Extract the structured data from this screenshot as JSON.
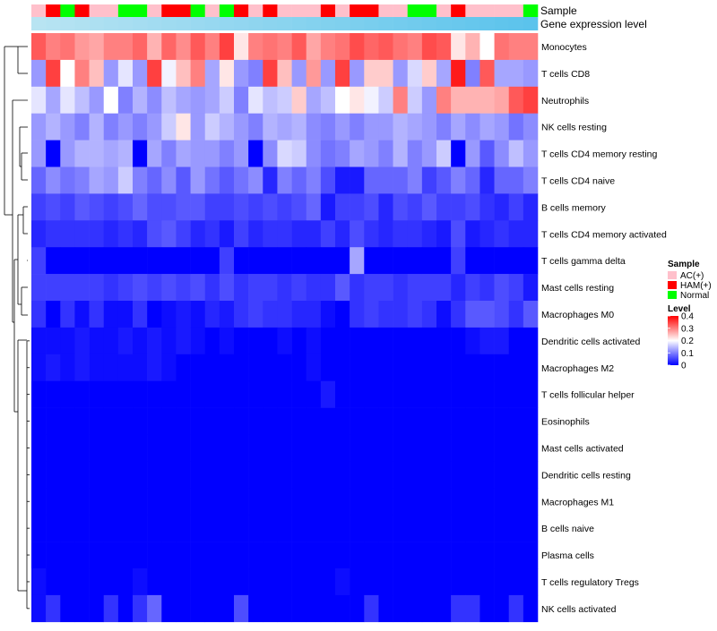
{
  "chart_data": {
    "type": "heatmap",
    "annotation_labels": [
      "Sample",
      "Gene expression level"
    ],
    "sample_groups": [
      "AC(+)",
      "HAM(+)",
      "Normal",
      "HAM(+)",
      "AC(+)",
      "AC(+)",
      "Normal",
      "Normal",
      "AC(+)",
      "HAM(+)",
      "HAM(+)",
      "Normal",
      "AC(+)",
      "Normal",
      "HAM(+)",
      "AC(+)",
      "HAM(+)",
      "AC(+)",
      "AC(+)",
      "AC(+)",
      "HAM(+)",
      "AC(+)",
      "HAM(+)",
      "HAM(+)",
      "AC(+)",
      "AC(+)",
      "Normal",
      "Normal",
      "AC(+)",
      "HAM(+)",
      "AC(+)",
      "AC(+)",
      "AC(+)",
      "AC(+)",
      "Normal"
    ],
    "rows": [
      {
        "name": "Monocytes",
        "values": [
          0.33,
          0.3,
          0.31,
          0.28,
          0.27,
          0.3,
          0.3,
          0.32,
          0.26,
          0.32,
          0.29,
          0.33,
          0.3,
          0.35,
          0.22,
          0.3,
          0.31,
          0.3,
          0.33,
          0.27,
          0.3,
          0.31,
          0.34,
          0.32,
          0.33,
          0.31,
          0.3,
          0.34,
          0.33,
          0.22,
          0.26,
          0.2,
          0.31,
          0.3,
          0.3
        ]
      },
      {
        "name": "T cells CD8",
        "values": [
          0.12,
          0.35,
          0.2,
          0.3,
          0.25,
          0.12,
          0.18,
          0.12,
          0.35,
          0.19,
          0.25,
          0.3,
          0.13,
          0.22,
          0.12,
          0.1,
          0.35,
          0.25,
          0.12,
          0.28,
          0.12,
          0.35,
          0.12,
          0.24,
          0.24,
          0.12,
          0.17,
          0.24,
          0.13,
          0.38,
          0.1,
          0.33,
          0.13,
          0.13,
          0.12
        ]
      },
      {
        "name": "Neutrophils",
        "values": [
          0.18,
          0.13,
          0.18,
          0.15,
          0.12,
          0.2,
          0.1,
          0.14,
          0.11,
          0.15,
          0.13,
          0.12,
          0.13,
          0.16,
          0.1,
          0.18,
          0.15,
          0.16,
          0.24,
          0.13,
          0.15,
          0.2,
          0.22,
          0.19,
          0.16,
          0.3,
          0.16,
          0.12,
          0.3,
          0.26,
          0.26,
          0.26,
          0.27,
          0.33,
          0.35
        ]
      },
      {
        "name": "NK cells resting",
        "values": [
          0.12,
          0.14,
          0.12,
          0.1,
          0.14,
          0.1,
          0.12,
          0.1,
          0.12,
          0.16,
          0.22,
          0.12,
          0.16,
          0.14,
          0.12,
          0.1,
          0.14,
          0.13,
          0.14,
          0.11,
          0.1,
          0.12,
          0.1,
          0.12,
          0.12,
          0.14,
          0.13,
          0.12,
          0.1,
          0.13,
          0.11,
          0.13,
          0.12,
          0.09,
          0.11
        ]
      },
      {
        "name": "T cells CD4 memory resting",
        "values": [
          0.12,
          0.0,
          0.12,
          0.14,
          0.14,
          0.13,
          0.14,
          0.0,
          0.13,
          0.1,
          0.13,
          0.12,
          0.12,
          0.1,
          0.12,
          0.0,
          0.11,
          0.17,
          0.16,
          0.11,
          0.09,
          0.1,
          0.13,
          0.12,
          0.1,
          0.14,
          0.1,
          0.12,
          0.16,
          0.0,
          0.12,
          0.07,
          0.11,
          0.15,
          0.12
        ]
      },
      {
        "name": "T cells CD4 naive",
        "values": [
          0.08,
          0.11,
          0.09,
          0.1,
          0.13,
          0.12,
          0.16,
          0.1,
          0.08,
          0.11,
          0.07,
          0.12,
          0.09,
          0.07,
          0.09,
          0.11,
          0.03,
          0.1,
          0.08,
          0.1,
          0.06,
          0.02,
          0.02,
          0.08,
          0.08,
          0.08,
          0.1,
          0.05,
          0.07,
          0.1,
          0.08,
          0.03,
          0.08,
          0.08,
          0.1
        ]
      },
      {
        "name": "B cells memory",
        "values": [
          0.05,
          0.06,
          0.05,
          0.07,
          0.06,
          0.05,
          0.06,
          0.08,
          0.06,
          0.06,
          0.07,
          0.07,
          0.05,
          0.05,
          0.06,
          0.05,
          0.06,
          0.05,
          0.06,
          0.08,
          0.02,
          0.05,
          0.05,
          0.06,
          0.03,
          0.06,
          0.05,
          0.07,
          0.05,
          0.05,
          0.06,
          0.04,
          0.03,
          0.05,
          0.03
        ]
      },
      {
        "name": "T cells CD4 memory activated",
        "values": [
          0.03,
          0.04,
          0.04,
          0.04,
          0.04,
          0.03,
          0.04,
          0.03,
          0.06,
          0.07,
          0.05,
          0.03,
          0.04,
          0.02,
          0.05,
          0.03,
          0.04,
          0.04,
          0.03,
          0.03,
          0.05,
          0.03,
          0.06,
          0.04,
          0.03,
          0.04,
          0.04,
          0.03,
          0.02,
          0.06,
          0.02,
          0.03,
          0.04,
          0.03,
          0.03
        ]
      },
      {
        "name": "T cells gamma delta",
        "values": [
          0.05,
          0.0,
          0.0,
          0.0,
          0.0,
          0.0,
          0.0,
          0.0,
          0.0,
          0.0,
          0.0,
          0.0,
          0.0,
          0.05,
          0.0,
          0.0,
          0.0,
          0.0,
          0.0,
          0.0,
          0.0,
          0.0,
          0.13,
          0.0,
          0.0,
          0.0,
          0.0,
          0.0,
          0.0,
          0.05,
          0.0,
          0.0,
          0.0,
          0.0,
          0.0
        ]
      },
      {
        "name": "Mast cells resting",
        "values": [
          0.05,
          0.05,
          0.05,
          0.05,
          0.05,
          0.04,
          0.05,
          0.06,
          0.05,
          0.06,
          0.05,
          0.06,
          0.04,
          0.06,
          0.04,
          0.05,
          0.05,
          0.04,
          0.05,
          0.04,
          0.04,
          0.07,
          0.04,
          0.05,
          0.05,
          0.04,
          0.05,
          0.05,
          0.05,
          0.03,
          0.05,
          0.04,
          0.06,
          0.05,
          0.02
        ]
      },
      {
        "name": "Macrophages M0",
        "values": [
          0.04,
          0.0,
          0.04,
          0.01,
          0.04,
          0.01,
          0.01,
          0.04,
          0.0,
          0.01,
          0.02,
          0.01,
          0.03,
          0.02,
          0.04,
          0.05,
          0.04,
          0.04,
          0.03,
          0.03,
          0.01,
          0.0,
          0.04,
          0.05,
          0.04,
          0.04,
          0.05,
          0.04,
          0.01,
          0.04,
          0.07,
          0.07,
          0.06,
          0.04,
          0.07
        ]
      },
      {
        "name": "Dendritic cells activated",
        "values": [
          0.01,
          0.01,
          0.01,
          0.02,
          0.01,
          0.01,
          0.02,
          0.01,
          0.02,
          0.01,
          0.02,
          0.01,
          0.0,
          0.01,
          0.0,
          0.0,
          0.0,
          0.01,
          0.0,
          0.01,
          0.0,
          0.0,
          0.0,
          0.0,
          0.0,
          0.0,
          0.0,
          0.0,
          0.0,
          0.0,
          0.01,
          0.02,
          0.02,
          0.0,
          0.0
        ]
      },
      {
        "name": "Macrophages M2",
        "values": [
          0.01,
          0.02,
          0.01,
          0.02,
          0.01,
          0.01,
          0.01,
          0.01,
          0.02,
          0.01,
          0.0,
          0.0,
          0.0,
          0.0,
          0.0,
          0.0,
          0.0,
          0.0,
          0.0,
          0.01,
          0.0,
          0.0,
          0.0,
          0.0,
          0.0,
          0.0,
          0.0,
          0.0,
          0.0,
          0.0,
          0.0,
          0.0,
          0.0,
          0.0,
          0.0
        ]
      },
      {
        "name": "T cells follicular helper",
        "values": [
          0.0,
          0.0,
          0.0,
          0.0,
          0.0,
          0.0,
          0.0,
          0.0,
          0.0,
          0.0,
          0.0,
          0.0,
          0.0,
          0.0,
          0.0,
          0.0,
          0.0,
          0.0,
          0.0,
          0.0,
          0.02,
          0.0,
          0.0,
          0.0,
          0.0,
          0.0,
          0.0,
          0.0,
          0.0,
          0.0,
          0.0,
          0.0,
          0.0,
          0.0,
          0.0
        ]
      },
      {
        "name": "Eosinophils",
        "values": [
          0,
          0,
          0,
          0,
          0,
          0,
          0,
          0,
          0,
          0,
          0,
          0,
          0,
          0,
          0,
          0,
          0,
          0,
          0,
          0,
          0,
          0,
          0,
          0,
          0,
          0,
          0,
          0,
          0,
          0,
          0,
          0,
          0,
          0,
          0
        ]
      },
      {
        "name": "Mast cells activated",
        "values": [
          0,
          0,
          0,
          0,
          0,
          0,
          0,
          0,
          0,
          0,
          0,
          0,
          0,
          0,
          0,
          0,
          0,
          0,
          0,
          0,
          0,
          0,
          0,
          0,
          0,
          0,
          0,
          0,
          0,
          0,
          0,
          0,
          0,
          0,
          0
        ]
      },
      {
        "name": "Dendritic cells resting",
        "values": [
          0,
          0,
          0,
          0,
          0,
          0,
          0,
          0,
          0,
          0,
          0,
          0,
          0,
          0,
          0,
          0,
          0,
          0,
          0,
          0,
          0,
          0,
          0,
          0,
          0,
          0,
          0,
          0,
          0,
          0,
          0,
          0,
          0,
          0,
          0
        ]
      },
      {
        "name": "Macrophages M1",
        "values": [
          0,
          0,
          0,
          0,
          0,
          0,
          0,
          0,
          0,
          0,
          0,
          0,
          0,
          0,
          0,
          0,
          0,
          0,
          0,
          0,
          0,
          0,
          0,
          0,
          0,
          0,
          0,
          0,
          0,
          0,
          0,
          0,
          0,
          0,
          0
        ]
      },
      {
        "name": "B cells naive",
        "values": [
          0,
          0,
          0,
          0,
          0,
          0,
          0,
          0,
          0,
          0,
          0,
          0,
          0,
          0,
          0,
          0,
          0,
          0,
          0,
          0,
          0,
          0,
          0,
          0,
          0,
          0,
          0,
          0,
          0,
          0,
          0,
          0,
          0,
          0,
          0
        ]
      },
      {
        "name": "Plasma cells",
        "values": [
          0,
          0,
          0,
          0,
          0,
          0,
          0,
          0,
          0,
          0,
          0,
          0,
          0,
          0,
          0,
          0,
          0,
          0,
          0,
          0,
          0,
          0,
          0,
          0,
          0,
          0,
          0,
          0,
          0,
          0,
          0,
          0,
          0,
          0,
          0
        ]
      },
      {
        "name": "T cells regulatory  Tregs",
        "values": [
          0.01,
          0.0,
          0.0,
          0.0,
          0.0,
          0.0,
          0.0,
          0.01,
          0.0,
          0.0,
          0.0,
          0.0,
          0.0,
          0.0,
          0.0,
          0.0,
          0.0,
          0.0,
          0.0,
          0.0,
          0.0,
          0.01,
          0.0,
          0.0,
          0.0,
          0.0,
          0.0,
          0.0,
          0.0,
          0.0,
          0.0,
          0.0,
          0.0,
          0.0,
          0.0
        ]
      },
      {
        "name": "NK cells activated",
        "values": [
          0.01,
          0.04,
          0.0,
          0.0,
          0.0,
          0.04,
          0.0,
          0.04,
          0.08,
          0.0,
          0.0,
          0.0,
          0.0,
          0.0,
          0.06,
          0.0,
          0.0,
          0.0,
          0.0,
          0.0,
          0.0,
          0.0,
          0.0,
          0.04,
          0.0,
          0.0,
          0.0,
          0.0,
          0.0,
          0.04,
          0.04,
          0.0,
          0.0,
          0.04,
          0.0
        ]
      }
    ],
    "color_scale": {
      "min": 0,
      "max": 0.4,
      "low": "#0000FF",
      "mid": "#FFFFFF",
      "high": "#FF0000",
      "midpoint": 0.2
    },
    "legend": {
      "placement": "right",
      "sample_title": "Sample",
      "sample_items": [
        {
          "label": "AC(+)",
          "color": "#FFC0CB"
        },
        {
          "label": "HAM(+)",
          "color": "#FF0000"
        },
        {
          "label": "Normal",
          "color": "#00FF00"
        }
      ],
      "level_title": "Level",
      "level_ticks": [
        {
          "value": 0.4,
          "label": "0.4"
        },
        {
          "value": 0.3,
          "label": "0.3"
        },
        {
          "value": 0.2,
          "label": "0.2"
        },
        {
          "value": 0.1,
          "label": "0.1"
        },
        {
          "value": 0,
          "label": "0"
        }
      ]
    },
    "expression_bar_colors": [
      "#B8E4F2",
      "#5BC3EC"
    ],
    "row_dendrogram": true
  }
}
